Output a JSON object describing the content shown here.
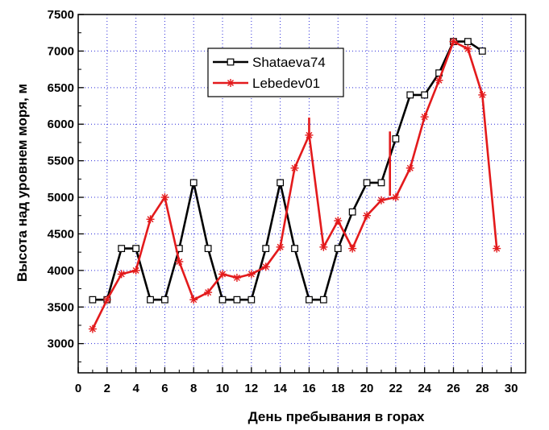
{
  "chart_data": {
    "type": "line",
    "xlabel": "День пребывания в горах",
    "ylabel": "Высота над уровнем моря, м",
    "xlim": [
      0,
      31
    ],
    "ylim": [
      2600,
      7500
    ],
    "x_ticks": [
      0,
      2,
      4,
      6,
      8,
      10,
      12,
      14,
      16,
      18,
      20,
      22,
      24,
      26,
      28,
      30
    ],
    "y_ticks": [
      3000,
      3500,
      4000,
      4500,
      5000,
      5500,
      6000,
      6500,
      7000,
      7500
    ],
    "grid": true,
    "legend_position": "top-center",
    "series": [
      {
        "name": "Shataeva74",
        "color": "#000000",
        "marker": "open-square",
        "points": [
          [
            1,
            3600
          ],
          [
            2,
            3600
          ],
          [
            3,
            4300
          ],
          [
            4,
            4300
          ],
          [
            5,
            3600
          ],
          [
            6,
            3600
          ],
          [
            7,
            4300
          ],
          [
            8,
            5200
          ],
          [
            9,
            4300
          ],
          [
            10,
            3600
          ],
          [
            11,
            3600
          ],
          [
            12,
            3600
          ],
          [
            13,
            4300
          ],
          [
            14,
            5200
          ],
          [
            15,
            4300
          ],
          [
            16,
            3600
          ],
          [
            17,
            3600
          ],
          [
            18,
            4300
          ],
          [
            19,
            4800
          ],
          [
            20,
            5200
          ],
          [
            21,
            5200
          ],
          [
            22,
            5800
          ],
          [
            23,
            6400
          ],
          [
            24,
            6400
          ],
          [
            25,
            6700
          ],
          [
            26,
            7130
          ],
          [
            27,
            7130
          ],
          [
            28,
            7000
          ]
        ]
      },
      {
        "name": "Lebedev01",
        "color": "#e31a1c",
        "marker": "asterisk",
        "points": [
          [
            1,
            3200
          ],
          [
            2,
            3600
          ],
          [
            3,
            3950
          ],
          [
            4,
            4000
          ],
          [
            5,
            4700
          ],
          [
            6,
            5000
          ],
          [
            7,
            4120
          ],
          [
            8,
            3600
          ],
          [
            9,
            3700
          ],
          [
            10,
            3950
          ],
          [
            11,
            3900
          ],
          [
            12,
            3950
          ],
          [
            13,
            4050
          ],
          [
            14,
            4320
          ],
          [
            15,
            5400
          ],
          [
            16,
            5850
          ],
          [
            17,
            4320
          ],
          [
            18,
            4680
          ],
          [
            19,
            4300
          ],
          [
            20,
            4750
          ],
          [
            21,
            4960
          ],
          [
            22,
            5000
          ],
          [
            23,
            5400
          ],
          [
            24,
            6100
          ],
          [
            25,
            6600
          ],
          [
            26,
            7130
          ],
          [
            27,
            7030
          ],
          [
            28,
            6400
          ],
          [
            29,
            4300
          ]
        ],
        "vertical_bars": [
          {
            "x": 16,
            "y_from": 5850,
            "y_to": 6090
          },
          {
            "x": 21.6,
            "y_from": 5020,
            "y_to": 5900
          }
        ]
      }
    ]
  }
}
